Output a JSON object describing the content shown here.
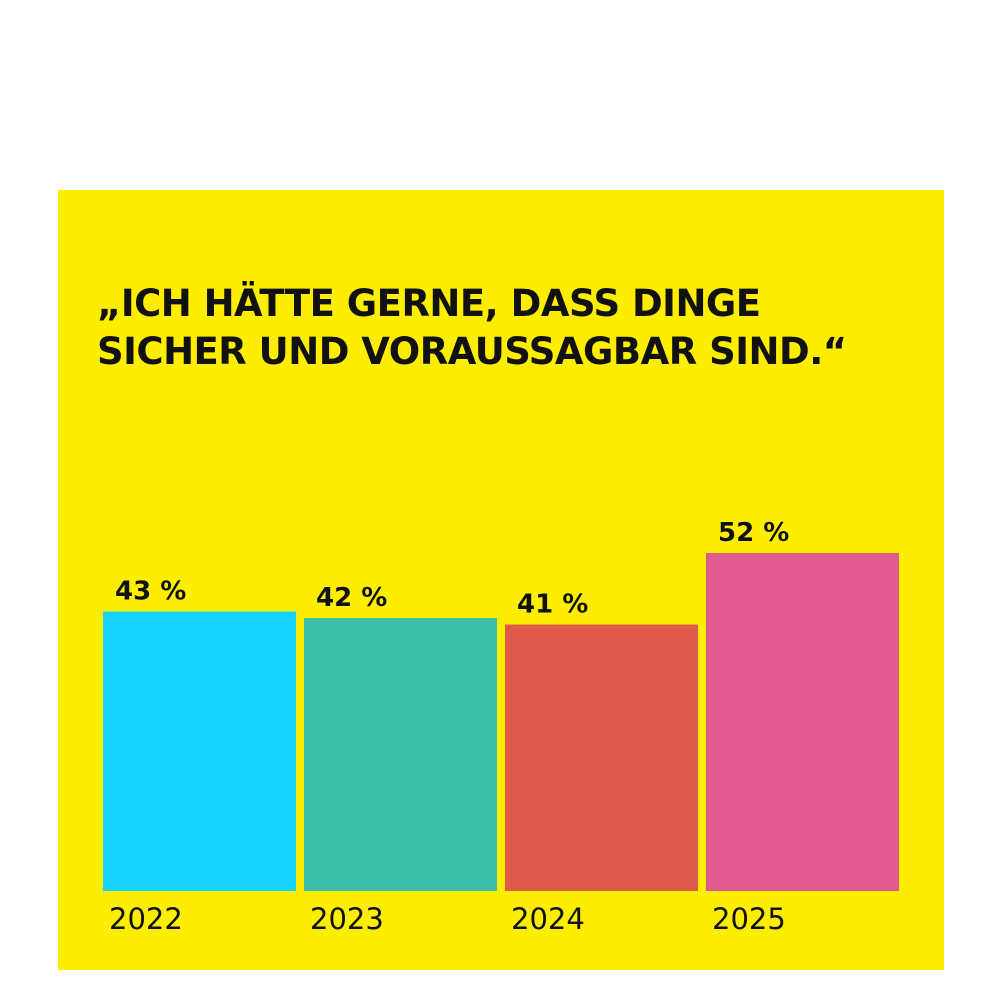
{
  "colors": {
    "page_background": "#ffffff",
    "panel_background": "#fdee00",
    "text": "#111111"
  },
  "chart_data": {
    "type": "bar",
    "title_lines": [
      "„ICH HÄTTE GERNE, DASS DINGE",
      "SICHER UND VORAUSSAGBAR SIND.“"
    ],
    "categories": [
      "2022",
      "2023",
      "2024",
      "2025"
    ],
    "values": [
      43,
      42,
      41,
      52
    ],
    "value_labels": [
      "43 %",
      "42 %",
      "41 %",
      "52 %"
    ],
    "bar_colors": [
      "#16d3ff",
      "#3bbfaa",
      "#e05a4b",
      "#e05a8e"
    ],
    "unit": "%",
    "xlabel": "",
    "ylabel": "",
    "ylim": [
      0,
      75
    ],
    "grid": false,
    "legend": "none"
  }
}
